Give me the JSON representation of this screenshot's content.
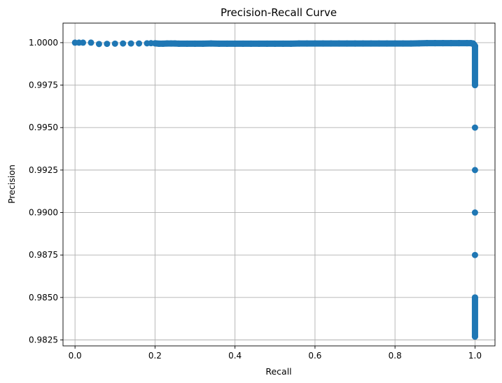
{
  "chart_data": {
    "type": "scatter",
    "title": "Precision-Recall Curve",
    "xlabel": "Recall",
    "ylabel": "Precision",
    "xlim": [
      -0.03,
      1.05
    ],
    "ylim": [
      0.98215,
      1.00115
    ],
    "grid": true,
    "colors": {
      "marker": "#1f77b4",
      "grid": "#b0b0b0",
      "axis": "#000000"
    },
    "x_ticks": [
      {
        "value": 0.0,
        "label": "0.0"
      },
      {
        "value": 0.2,
        "label": "0.2"
      },
      {
        "value": 0.4,
        "label": "0.4"
      },
      {
        "value": 0.6,
        "label": "0.6"
      },
      {
        "value": 0.8,
        "label": "0.8"
      },
      {
        "value": 1.0,
        "label": "1.0"
      }
    ],
    "y_ticks": [
      {
        "value": 0.9825,
        "label": "0.9825"
      },
      {
        "value": 0.985,
        "label": "0.9850"
      },
      {
        "value": 0.9875,
        "label": "0.9875"
      },
      {
        "value": 0.99,
        "label": "0.9900"
      },
      {
        "value": 0.9925,
        "label": "0.9925"
      },
      {
        "value": 0.995,
        "label": "0.9950"
      },
      {
        "value": 0.9975,
        "label": "0.9975"
      },
      {
        "value": 1.0,
        "label": "1.0000"
      }
    ],
    "series": [
      {
        "points": [
          [
            0.0,
            1.0
          ],
          [
            0.01,
            1.0
          ],
          [
            0.02,
            1.0
          ],
          [
            0.04,
            1.0
          ],
          [
            0.06,
            0.99992
          ],
          [
            0.08,
            0.99993
          ],
          [
            0.1,
            0.99994
          ],
          [
            0.12,
            0.99995
          ],
          [
            0.14,
            0.99995
          ],
          [
            0.16,
            0.99995
          ],
          [
            0.18,
            0.99996
          ],
          [
            0.19,
            0.99997
          ],
          [
            0.2,
            0.99996
          ],
          [
            0.21,
            0.99994
          ],
          [
            0.22,
            0.99994
          ],
          [
            0.23,
            0.99995
          ],
          [
            0.24,
            0.99995
          ],
          [
            0.25,
            0.99995
          ],
          [
            0.26,
            0.99994
          ],
          [
            0.28,
            0.99994
          ],
          [
            0.3,
            0.99994
          ],
          [
            0.32,
            0.99994
          ],
          [
            0.34,
            0.99995
          ],
          [
            0.36,
            0.99994
          ],
          [
            0.38,
            0.99994
          ],
          [
            0.4,
            0.99994
          ],
          [
            0.42,
            0.99994
          ],
          [
            0.44,
            0.99994
          ],
          [
            0.46,
            0.99994
          ],
          [
            0.48,
            0.99994
          ],
          [
            0.5,
            0.99994
          ],
          [
            0.52,
            0.99994
          ],
          [
            0.54,
            0.99994
          ],
          [
            0.56,
            0.99995
          ],
          [
            0.58,
            0.99995
          ],
          [
            0.6,
            0.99995
          ],
          [
            0.62,
            0.99995
          ],
          [
            0.64,
            0.99995
          ],
          [
            0.66,
            0.99995
          ],
          [
            0.68,
            0.99995
          ],
          [
            0.7,
            0.99995
          ],
          [
            0.72,
            0.99995
          ],
          [
            0.74,
            0.99995
          ],
          [
            0.76,
            0.99995
          ],
          [
            0.78,
            0.99995
          ],
          [
            0.8,
            0.99995
          ],
          [
            0.82,
            0.99995
          ],
          [
            0.84,
            0.99995
          ],
          [
            0.86,
            0.99996
          ],
          [
            0.88,
            0.99997
          ],
          [
            0.9,
            0.99997
          ],
          [
            0.92,
            0.99997
          ],
          [
            0.94,
            0.99997
          ],
          [
            0.96,
            0.99997
          ],
          [
            0.98,
            0.99997
          ],
          [
            0.99,
            0.99997
          ],
          [
            0.995,
            0.99995
          ],
          [
            0.997,
            0.9999
          ],
          [
            1.0,
            0.9998
          ],
          [
            1.0,
            0.9975
          ],
          [
            1.0,
            0.995
          ],
          [
            1.0,
            0.9925
          ],
          [
            1.0,
            0.99
          ],
          [
            1.0,
            0.9875
          ],
          [
            1.0,
            0.985
          ],
          [
            1.0,
            0.9827
          ]
        ]
      }
    ]
  }
}
